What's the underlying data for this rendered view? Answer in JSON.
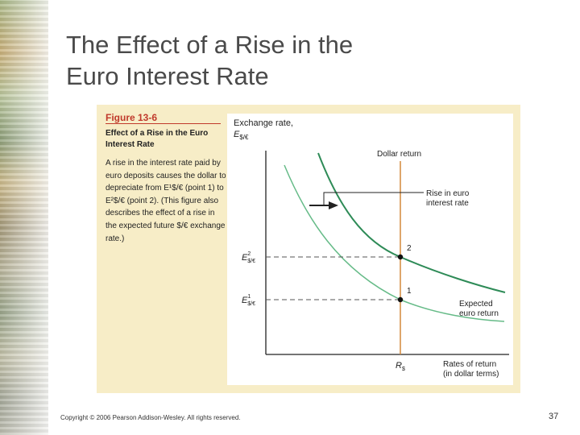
{
  "slide": {
    "title_line1": "The Effect of a Rise in the",
    "title_line2": "Euro Interest Rate",
    "copyright": "Copyright © 2006 Pearson Addison-Wesley. All rights reserved.",
    "page_number": "37"
  },
  "figure": {
    "number": "Figure 13-6",
    "title": "Effect of a Rise in the Euro Interest Rate",
    "caption": "A rise in the interest rate paid by euro deposits causes the dollar to depreciate from E¹$/€ (point 1) to E²$/€ (point 2). (This figure also describes the effect of a rise in the expected future $/€ exchange rate.)"
  },
  "diagram": {
    "y_axis_label_line1": "Exchange rate,",
    "y_axis_label_symbol": "E",
    "y_axis_label_sub": "$/€",
    "x_axis_label_line1": "Rates of return",
    "x_axis_label_line2": "(in dollar terms)",
    "dollar_return_label": "Dollar return",
    "rise_label_line1": "Rise in euro",
    "rise_label_line2": "interest rate",
    "expected_label_line1": "Expected",
    "expected_label_line2": "euro return",
    "point1_label": "1",
    "point2_label": "2",
    "e2_symbol": "E",
    "e2_sup": "2",
    "e2_sub": "$/€",
    "e1_symbol": "E",
    "e1_sup": "1",
    "e1_sub": "$/€",
    "r_symbol": "R",
    "r_sub": "$",
    "colors": {
      "new_curve": "#2e8b57",
      "old_curve": "#66bb88",
      "dollar_return_line": "#d4883a",
      "axes": "#222222"
    }
  }
}
